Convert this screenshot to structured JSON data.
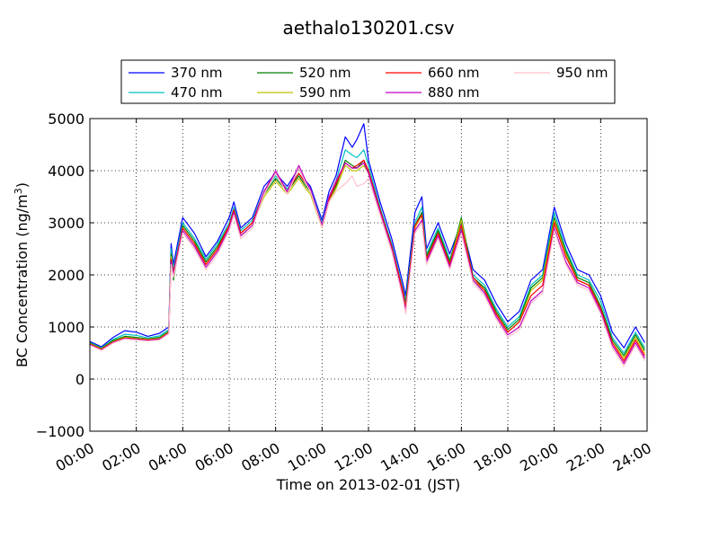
{
  "chart_data": {
    "type": "line",
    "title": "aethalo130201.csv",
    "xlabel": "Time on 2013-02-01 (JST)",
    "ylabel_main": "BC Concentration (ng/m",
    "ylabel_sup": "3",
    "ylabel_tail": ")",
    "xlim": [
      0,
      24
    ],
    "ylim": [
      -1000,
      5000
    ],
    "yticks": [
      -1000,
      0,
      1000,
      2000,
      3000,
      4000,
      5000
    ],
    "ytick_labels": [
      "−1000",
      "0",
      "1000",
      "2000",
      "3000",
      "4000",
      "5000"
    ],
    "xticks": [
      0,
      2,
      4,
      6,
      8,
      10,
      12,
      14,
      16,
      18,
      20,
      22,
      24
    ],
    "xtick_labels": [
      "00:00",
      "02:00",
      "04:00",
      "06:00",
      "08:00",
      "10:00",
      "12:00",
      "14:00",
      "16:00",
      "18:00",
      "20:00",
      "22:00",
      "24:00"
    ],
    "grid": true,
    "legend_position": "top",
    "x": [
      0,
      0.5,
      1,
      1.5,
      2,
      2.5,
      3,
      3.4,
      3.5,
      3.6,
      4,
      4.5,
      5,
      5.5,
      6,
      6.2,
      6.5,
      7,
      7.5,
      8,
      8.5,
      9,
      9.3,
      9.5,
      10,
      10.3,
      10.6,
      11,
      11.3,
      11.5,
      11.8,
      12,
      12.5,
      13,
      13.5,
      13.6,
      14,
      14.3,
      14.5,
      15,
      15.5,
      16,
      16.5,
      17,
      17.5,
      18,
      18.5,
      19,
      19.5,
      20,
      20.5,
      21,
      21.5,
      22,
      22.5,
      23,
      23.5,
      23.9
    ],
    "series": [
      {
        "name": "370 nm",
        "color": "#0000ff",
        "values": [
          720,
          620,
          800,
          930,
          900,
          820,
          880,
          1000,
          2600,
          2200,
          3100,
          2800,
          2350,
          2650,
          3100,
          3400,
          2900,
          3100,
          3700,
          3950,
          3700,
          4050,
          3800,
          3700,
          3050,
          3600,
          3900,
          4650,
          4450,
          4600,
          4900,
          4200,
          3400,
          2700,
          1800,
          1600,
          3200,
          3500,
          2500,
          3000,
          2400,
          3000,
          2100,
          1900,
          1450,
          1100,
          1300,
          1900,
          2100,
          3300,
          2600,
          2100,
          2000,
          1600,
          900,
          600,
          1000,
          700
        ]
      },
      {
        "name": "470 nm",
        "color": "#00bfbf",
        "values": [
          700,
          600,
          760,
          860,
          840,
          790,
          830,
          950,
          2500,
          2100,
          3000,
          2700,
          2300,
          2600,
          3000,
          3300,
          2850,
          3050,
          3600,
          3900,
          3650,
          3950,
          3750,
          3650,
          3000,
          3500,
          3800,
          4400,
          4300,
          4250,
          4400,
          4100,
          3300,
          2600,
          1700,
          1500,
          3000,
          3300,
          2400,
          2900,
          2300,
          2900,
          2000,
          1800,
          1350,
          1000,
          1200,
          1800,
          2000,
          3200,
          2500,
          2000,
          1900,
          1500,
          800,
          500,
          900,
          600
        ]
      },
      {
        "name": "520 nm",
        "color": "#008000",
        "values": [
          690,
          590,
          740,
          820,
          800,
          770,
          800,
          920,
          2400,
          1900,
          2950,
          2650,
          2250,
          2550,
          2950,
          3250,
          2800,
          3000,
          3550,
          3850,
          3600,
          3900,
          3700,
          3600,
          2950,
          3450,
          3700,
          4200,
          4100,
          4050,
          4200,
          4000,
          3250,
          2550,
          1650,
          1450,
          2950,
          3200,
          2350,
          2850,
          2250,
          3100,
          1950,
          1750,
          1300,
          950,
          1150,
          1750,
          1950,
          3100,
          2450,
          1950,
          1850,
          1400,
          750,
          450,
          850,
          550
        ]
      },
      {
        "name": "590 nm",
        "color": "#bfbf00",
        "values": [
          680,
          580,
          720,
          800,
          780,
          760,
          780,
          900,
          2350,
          1950,
          2900,
          2600,
          2200,
          2500,
          2900,
          3200,
          2750,
          2950,
          3500,
          3800,
          3550,
          3850,
          3650,
          3550,
          2900,
          3400,
          3650,
          4100,
          4000,
          4000,
          4100,
          3950,
          3200,
          2500,
          1600,
          1400,
          2900,
          3150,
          2300,
          2800,
          2200,
          3050,
          1900,
          1700,
          1250,
          900,
          1100,
          1700,
          1900,
          3050,
          2400,
          1900,
          1800,
          1350,
          700,
          400,
          800,
          500
        ]
      },
      {
        "name": "660 nm",
        "color": "#ff0000",
        "values": [
          670,
          570,
          710,
          790,
          770,
          750,
          770,
          890,
          2300,
          2050,
          2900,
          2600,
          2200,
          2500,
          2950,
          3250,
          2800,
          3000,
          3600,
          3950,
          3600,
          3950,
          3750,
          3600,
          2950,
          3450,
          3750,
          4150,
          4050,
          4100,
          4200,
          4000,
          3250,
          2550,
          1650,
          1350,
          2950,
          3150,
          2300,
          2800,
          2200,
          2950,
          1950,
          1700,
          1250,
          900,
          1100,
          1600,
          1800,
          3000,
          2350,
          1900,
          1800,
          1350,
          700,
          350,
          750,
          450
        ]
      },
      {
        "name": "880 nm",
        "color": "#bf00bf",
        "values": [
          660,
          560,
          700,
          780,
          760,
          740,
          760,
          880,
          2250,
          2000,
          2850,
          2550,
          2150,
          2450,
          2900,
          3200,
          2750,
          2950,
          3600,
          4000,
          3600,
          4100,
          3800,
          3650,
          2950,
          3500,
          3800,
          4150,
          4050,
          4050,
          4150,
          3950,
          3200,
          2500,
          1550,
          1300,
          2850,
          3050,
          2250,
          2750,
          2150,
          2850,
          1900,
          1650,
          1200,
          850,
          1000,
          1500,
          1700,
          2900,
          2250,
          1850,
          1750,
          1300,
          650,
          300,
          700,
          400
        ]
      },
      {
        "name": "950 nm",
        "color": "#ffc0cb",
        "values": [
          650,
          550,
          690,
          770,
          750,
          730,
          750,
          870,
          2200,
          1950,
          2800,
          2500,
          2100,
          2400,
          2850,
          3150,
          2700,
          2900,
          3550,
          3950,
          3550,
          4050,
          3750,
          3600,
          2900,
          3400,
          3600,
          3750,
          3900,
          3700,
          3750,
          3850,
          3150,
          2450,
          1500,
          1250,
          2800,
          3000,
          2200,
          2700,
          2100,
          2800,
          1850,
          1600,
          1150,
          800,
          950,
          1450,
          1650,
          2850,
          2200,
          1800,
          1700,
          1250,
          600,
          250,
          650,
          350
        ]
      }
    ]
  }
}
